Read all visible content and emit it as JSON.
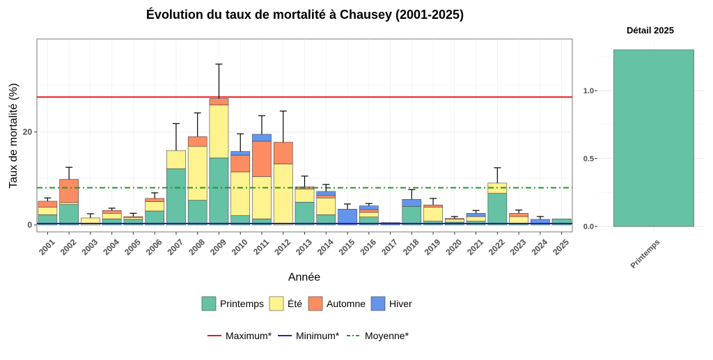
{
  "title": "Évolution du taux de mortalité à Chausey (2001-2025)",
  "chart_data": [
    {
      "type": "bar",
      "stacked": true,
      "xlabel": "Année",
      "ylabel": "Taux de mortalité (%)",
      "ylim": [
        -1.5,
        40
      ],
      "yticks": [
        0,
        20
      ],
      "grid": true,
      "categories": [
        "2001",
        "2002",
        "2003",
        "2004",
        "2005",
        "2006",
        "2007",
        "2008",
        "2009",
        "2010",
        "2011",
        "2012",
        "2013",
        "2014",
        "2015",
        "2016",
        "2017",
        "2018",
        "2019",
        "2020",
        "2021",
        "2022",
        "2023",
        "2024",
        "2025"
      ],
      "series": [
        {
          "name": "Printemps",
          "color": "#66c2a5",
          "values": [
            2.2,
            4.4,
            0,
            1.3,
            1.2,
            3.0,
            12.1,
            5.3,
            14.4,
            2.0,
            1.3,
            0,
            4.9,
            2.2,
            0,
            1.7,
            0,
            4.0,
            0.8,
            0.6,
            0.8,
            6.8,
            0.2,
            0.3,
            1.3
          ]
        },
        {
          "name": "Été",
          "color": "#fff38f",
          "values": [
            1.6,
            0.4,
            1.5,
            1.2,
            0.4,
            2.0,
            3.9,
            11.6,
            11.4,
            9.4,
            9.1,
            13.1,
            2.8,
            3.6,
            0,
            1.0,
            0,
            0,
            3.0,
            0.6,
            1.0,
            2.2,
            1.6,
            0,
            0
          ]
        },
        {
          "name": "Automne",
          "color": "#fc8d62",
          "values": [
            1.3,
            5.0,
            0,
            0.6,
            0.2,
            0.7,
            0,
            2.1,
            1.4,
            3.6,
            7.6,
            4.7,
            0.5,
            0.6,
            0,
            0.6,
            0,
            0,
            0.5,
            0.2,
            0,
            0,
            0.7,
            0,
            0
          ]
        },
        {
          "name": "Hiver",
          "color": "#6495ed",
          "values": [
            0,
            0,
            0,
            0,
            0,
            0,
            0,
            0,
            0,
            0.8,
            1.5,
            0,
            0,
            0.8,
            3.4,
            0.8,
            0.5,
            1.5,
            0,
            0,
            0.7,
            0,
            0,
            0.9,
            0
          ]
        }
      ],
      "error_top": [
        5.8,
        12.4,
        2.4,
        3.6,
        2.5,
        6.9,
        21.8,
        24.1,
        34.6,
        19.6,
        23.5,
        24.5,
        10.5,
        8.7,
        4.5,
        4.6,
        0.5,
        7.6,
        5.7,
        1.8,
        3.1,
        12.3,
        3.2,
        1.8,
        1.3
      ],
      "reference_lines": [
        {
          "name": "Maximum*",
          "value": 27.5,
          "color": "#e41a1c",
          "style": "solid"
        },
        {
          "name": "Minimum*",
          "value": 0.3,
          "color": "#1f1fd6",
          "style": "solid"
        },
        {
          "name": "Moyenne*",
          "value": 8.0,
          "color": "#229922",
          "style": "dotdash"
        }
      ]
    },
    {
      "type": "bar",
      "title": "Détail 2025",
      "categories": [
        "Printemps"
      ],
      "values": [
        1.3
      ],
      "color": "#66c2a5",
      "ylim": [
        -0.04,
        1.38
      ],
      "yticks": [
        0.0,
        0.5,
        1.0
      ],
      "ytick_labels": [
        "0.0",
        "0.5",
        "1.0"
      ],
      "grid": true
    }
  ],
  "legend_labels": [
    "Printemps",
    "Été",
    "Automne",
    "Hiver"
  ],
  "line_legend_labels": [
    "Maximum*",
    "Minimum*",
    "Moyenne*"
  ]
}
